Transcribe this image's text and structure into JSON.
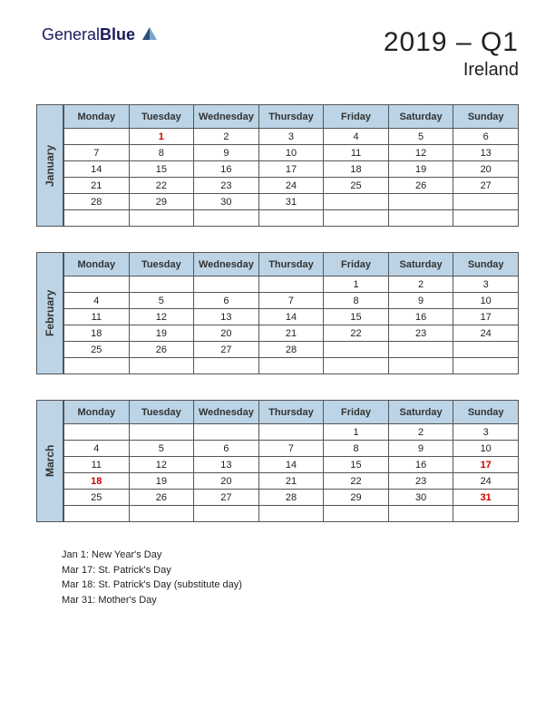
{
  "logo": {
    "text1": "General",
    "text2": "Blue"
  },
  "header": {
    "title": "2019 – Q1",
    "subtitle": "Ireland"
  },
  "colors": {
    "accent_bg": "#bcd4e6",
    "border": "#555555",
    "text": "#222222",
    "holiday": "#cc0000",
    "logo": "#1a1a5e"
  },
  "day_headers": [
    "Monday",
    "Tuesday",
    "Wednesday",
    "Thursday",
    "Friday",
    "Saturday",
    "Sunday"
  ],
  "months": [
    {
      "name": "January",
      "weeks": [
        [
          "",
          "1",
          "2",
          "3",
          "4",
          "5",
          "6"
        ],
        [
          "7",
          "8",
          "9",
          "10",
          "11",
          "12",
          "13"
        ],
        [
          "14",
          "15",
          "16",
          "17",
          "18",
          "19",
          "20"
        ],
        [
          "21",
          "22",
          "23",
          "24",
          "25",
          "26",
          "27"
        ],
        [
          "28",
          "29",
          "30",
          "31",
          "",
          "",
          ""
        ],
        [
          "",
          "",
          "",
          "",
          "",
          "",
          ""
        ]
      ],
      "holidays": [
        [
          0,
          1
        ]
      ]
    },
    {
      "name": "February",
      "weeks": [
        [
          "",
          "",
          "",
          "",
          "1",
          "2",
          "3"
        ],
        [
          "4",
          "5",
          "6",
          "7",
          "8",
          "9",
          "10"
        ],
        [
          "11",
          "12",
          "13",
          "14",
          "15",
          "16",
          "17"
        ],
        [
          "18",
          "19",
          "20",
          "21",
          "22",
          "23",
          "24"
        ],
        [
          "25",
          "26",
          "27",
          "28",
          "",
          "",
          ""
        ],
        [
          "",
          "",
          "",
          "",
          "",
          "",
          ""
        ]
      ],
      "holidays": []
    },
    {
      "name": "March",
      "weeks": [
        [
          "",
          "",
          "",
          "",
          "1",
          "2",
          "3"
        ],
        [
          "4",
          "5",
          "6",
          "7",
          "8",
          "9",
          "10"
        ],
        [
          "11",
          "12",
          "13",
          "14",
          "15",
          "16",
          "17"
        ],
        [
          "18",
          "19",
          "20",
          "21",
          "22",
          "23",
          "24"
        ],
        [
          "25",
          "26",
          "27",
          "28",
          "29",
          "30",
          "31"
        ],
        [
          "",
          "",
          "",
          "",
          "",
          "",
          ""
        ]
      ],
      "holidays": [
        [
          2,
          6
        ],
        [
          3,
          0
        ],
        [
          4,
          6
        ]
      ]
    }
  ],
  "holiday_list": [
    "Jan 1: New Year's Day",
    "Mar 17: St. Patrick's Day",
    "Mar 18: St. Patrick's Day (substitute day)",
    "Mar 31: Mother's Day"
  ]
}
